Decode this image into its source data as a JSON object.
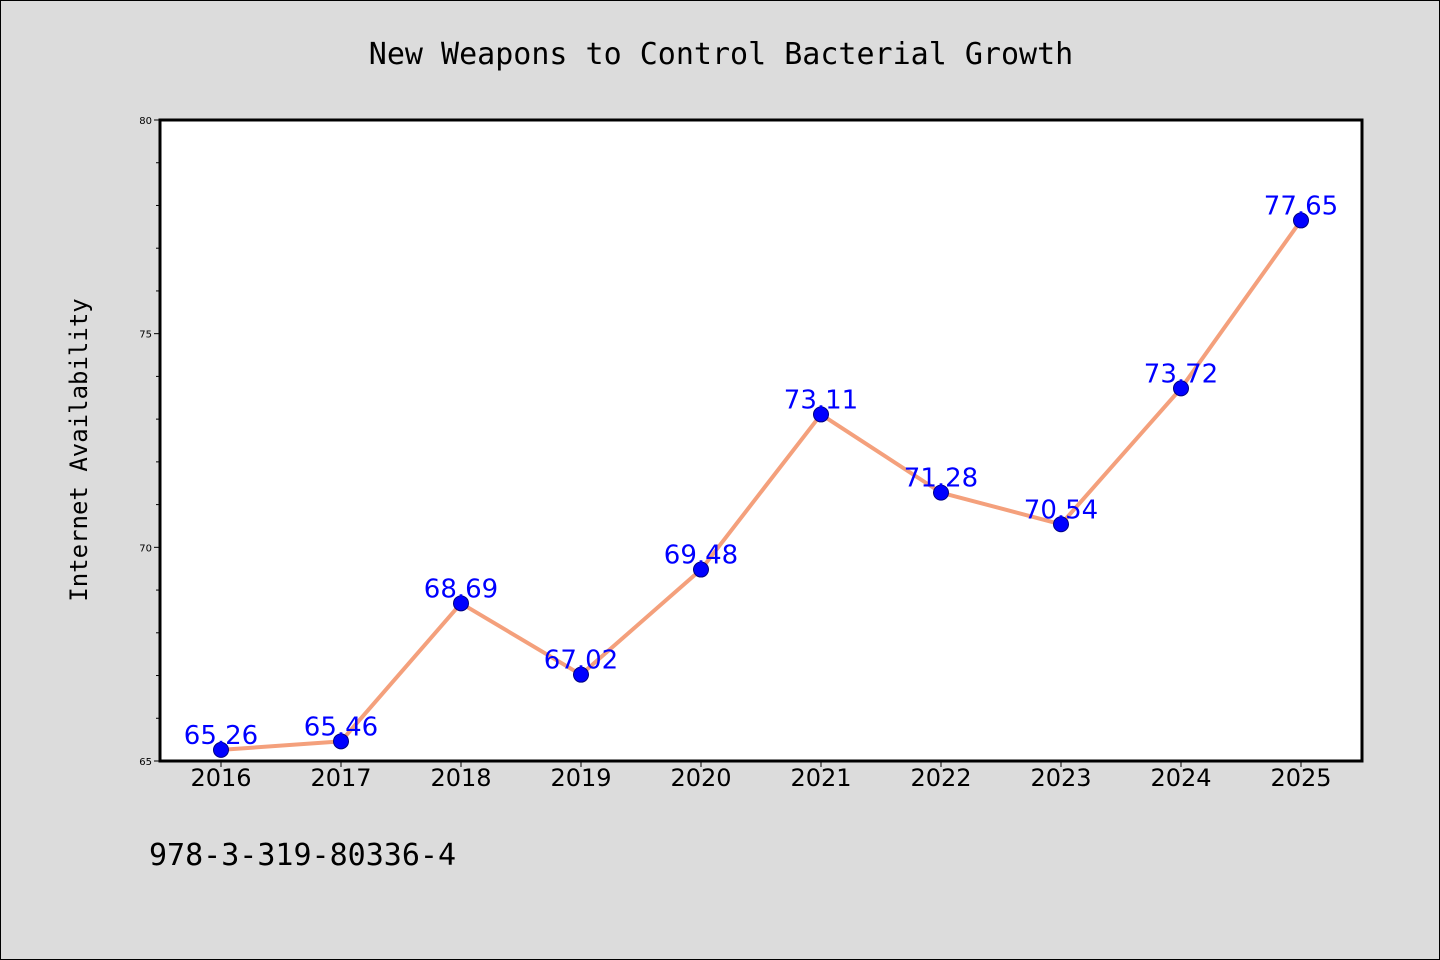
{
  "chart_data": {
    "type": "line",
    "title": "New Weapons to Control Bacterial Growth",
    "xlabel": "",
    "ylabel": "Internet Availability",
    "x": [
      "2016",
      "2017",
      "2018",
      "2019",
      "2020",
      "2021",
      "2022",
      "2023",
      "2024",
      "2025"
    ],
    "series": [
      {
        "values": [
          65.26,
          65.46,
          68.69,
          67.02,
          69.48,
          73.11,
          71.28,
          70.54,
          73.72,
          77.65
        ],
        "labels": [
          "65.26",
          "65.46",
          "68.69",
          "67.02",
          "69.48",
          "73.11",
          "71.28",
          "70.54",
          "73.72",
          "77.65"
        ],
        "line_color": "#f4a07c",
        "marker_color": "#0000ff",
        "label_color": "#0000ff"
      }
    ],
    "ylim": [
      65,
      80
    ],
    "yticks": [
      65,
      70,
      75,
      80
    ],
    "grid": false,
    "legend": "none"
  },
  "footnote": "978-3-319-80336-4",
  "colors": {
    "background": "#dcdcdc",
    "plot_background": "#ffffff",
    "axis": "#000000"
  }
}
